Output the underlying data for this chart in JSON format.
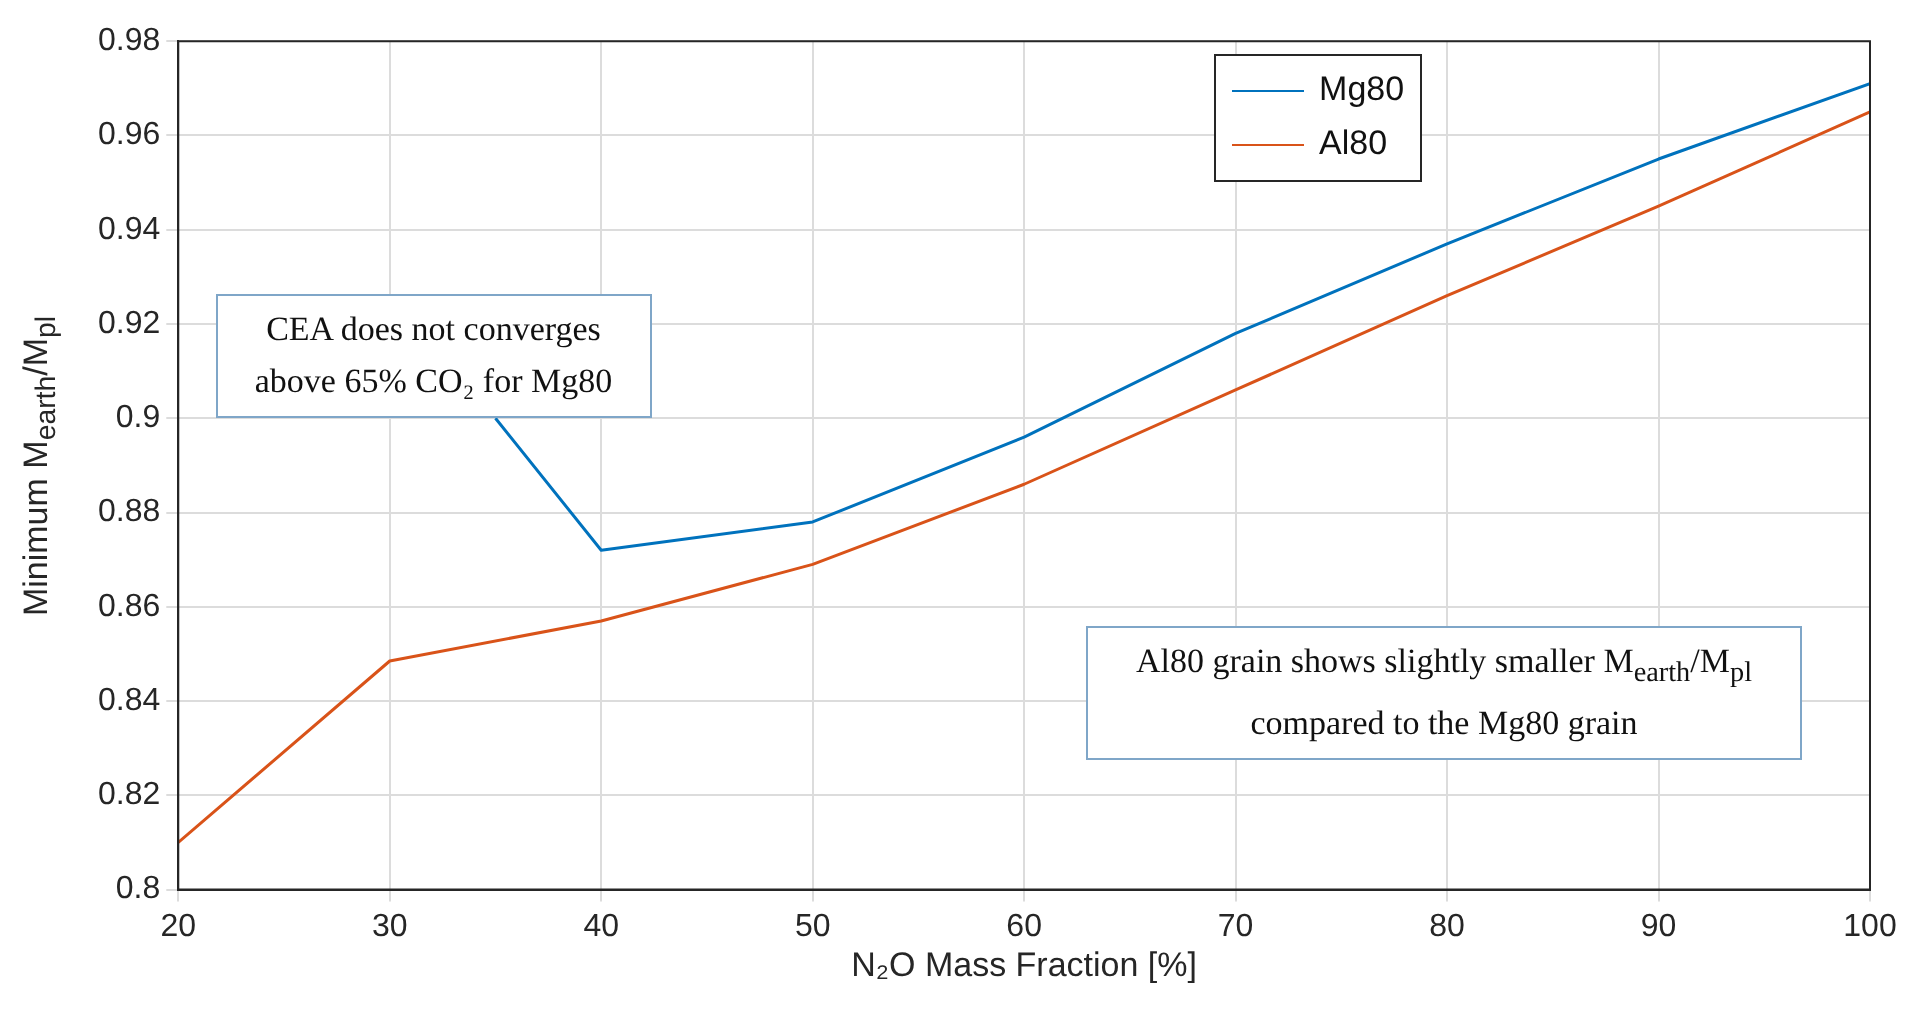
{
  "chart_data": {
    "type": "line",
    "xlabel": "N₂O Mass Fraction [%]",
    "ylabel": "Minimum M$_{earth}$/M$_{pl}$",
    "x": [
      20,
      30,
      40,
      50,
      60,
      70,
      80,
      90,
      100
    ],
    "series": [
      {
        "name": "Mg80",
        "color": "#0072bd",
        "x": [
          35,
          40,
          50,
          60,
          70,
          80,
          90,
          100
        ],
        "values": [
          0.9,
          0.872,
          0.878,
          0.896,
          0.918,
          0.937,
          0.955,
          0.971
        ]
      },
      {
        "name": "Al80",
        "color": "#d95319",
        "values": [
          0.81,
          0.8485,
          0.857,
          0.869,
          0.886,
          0.906,
          0.926,
          0.945,
          0.965
        ]
      }
    ],
    "xlim": [
      20,
      100
    ],
    "xticks": [
      20,
      30,
      40,
      50,
      60,
      70,
      80,
      90,
      100
    ],
    "ylim": [
      0.8,
      0.98
    ],
    "yticks": [
      0.8,
      0.82,
      0.84,
      0.86,
      0.88,
      0.9,
      0.92,
      0.94,
      0.96,
      0.98
    ],
    "grid": true,
    "legend": "top right",
    "marker": "none",
    "line_style": "solid",
    "annotations": [
      {
        "text": "CEA does not converges above 65% CO₂ for Mg80",
        "x": 35,
        "y": 0.9
      },
      "Al80 grain shows slightly smaller M$_{earth}$/M$_{pl}$ compared to the Mg80 grain"
    ]
  }
}
